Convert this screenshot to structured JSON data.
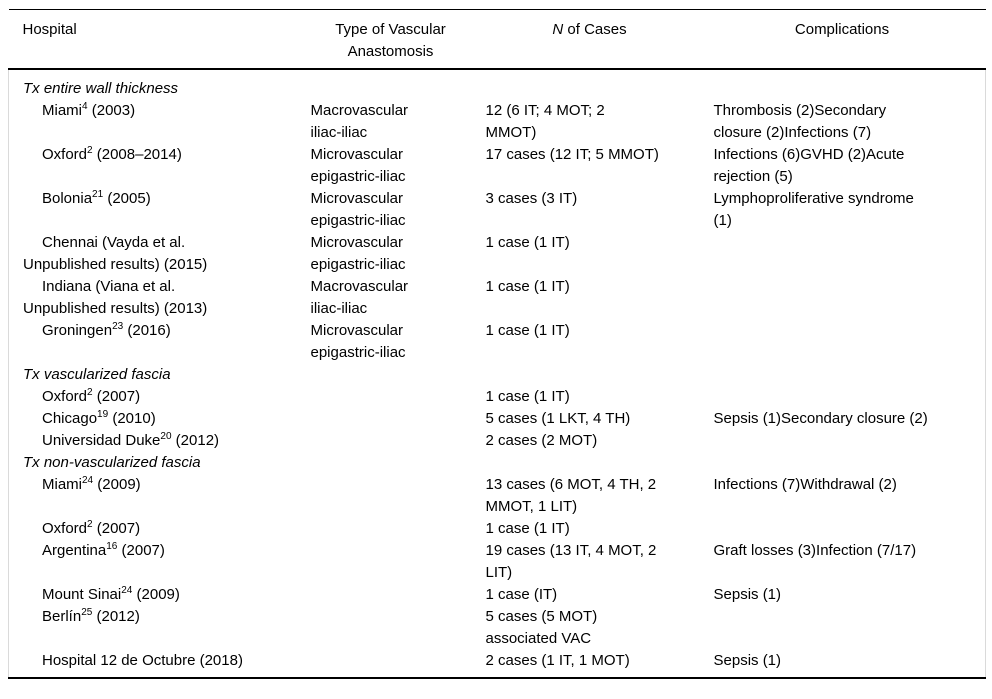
{
  "colors": {
    "text": "#000000",
    "rule_black": "#000000",
    "rule_gray": "#dadada",
    "background": "#ffffff"
  },
  "table": {
    "columns": [
      {
        "label": "Hospital",
        "align": "left"
      },
      {
        "label": "Type of Vascular\nAnastomosis",
        "align": "center"
      },
      {
        "label_italic": "N",
        "label_rest": " of Cases",
        "align": "center"
      },
      {
        "label": "Complications",
        "align": "center"
      }
    ],
    "rows": [
      {
        "kind": "section",
        "label": "Tx entire wall thickness"
      },
      {
        "kind": "entry",
        "name": "Miami",
        "sup": "4",
        "rest": " (2003)",
        "anastomosis": "Macrovascular\niliac-iliac",
        "cases": "12 (6 IT; 4 MOT; 2\nMMOT)",
        "complications": "Thrombosis (2)Secondary\nclosure (2)Infections (7)"
      },
      {
        "kind": "entry",
        "name": "Oxford",
        "sup": "2",
        "rest": " (2008–2014)",
        "anastomosis": "Microvascular\nepigastric-iliac",
        "cases": "17 cases (12 IT; 5 MMOT)",
        "complications": "Infections (6)GVHD (2)Acute\nrejection (5)"
      },
      {
        "kind": "entry",
        "name": "Bolonia",
        "sup": "21",
        "rest": " (2005)",
        "anastomosis": "Microvascular\nepigastric-iliac",
        "cases": "3 cases (3 IT)",
        "complications": "Lymphoproliferative syndrome\n(1)"
      },
      {
        "kind": "entry",
        "name": "Chennai (Vayda et al.\nUnpublished results) (2015)",
        "sup": "",
        "rest": "",
        "anastomosis": "Microvascular\nepigastric-iliac",
        "cases": "1 case (1 IT)",
        "complications": ""
      },
      {
        "kind": "entry",
        "name": "Indiana (Viana et al.\nUnpublished results) (2013)",
        "sup": "",
        "rest": "",
        "anastomosis": "Macrovascular\niliac-iliac",
        "cases": "1 case (1 IT)",
        "complications": ""
      },
      {
        "kind": "entry",
        "name": "Groningen",
        "sup": "23",
        "rest": " (2016)",
        "anastomosis": "Microvascular\nepigastric-iliac",
        "cases": "1 case (1 IT)",
        "complications": ""
      },
      {
        "kind": "section",
        "label": "Tx vascularized fascia"
      },
      {
        "kind": "entry",
        "name": "Oxford",
        "sup": "2",
        "rest": " (2007)",
        "anastomosis": "",
        "cases": "1 case (1 IT)",
        "complications": ""
      },
      {
        "kind": "entry",
        "name": "Chicago",
        "sup": "19",
        "rest": " (2010)",
        "anastomosis": "",
        "cases": "5 cases (1 LKT, 4 TH)",
        "complications": "Sepsis (1)Secondary closure (2)"
      },
      {
        "kind": "entry",
        "name": "Universidad Duke",
        "sup": "20",
        "rest": " (2012)",
        "anastomosis": "",
        "cases": "2 cases (2 MOT)",
        "complications": ""
      },
      {
        "kind": "section",
        "label": "Tx non-vascularized fascia"
      },
      {
        "kind": "entry",
        "name": "Miami",
        "sup": "24",
        "rest": " (2009)",
        "anastomosis": "",
        "cases": "13 cases (6 MOT, 4 TH, 2\nMMOT, 1 LIT)",
        "complications": "Infections (7)Withdrawal (2)"
      },
      {
        "kind": "entry",
        "name": "Oxford",
        "sup": "2",
        "rest": " (2007)",
        "anastomosis": "",
        "cases": "1 case (1 IT)",
        "complications": ""
      },
      {
        "kind": "entry",
        "name": "Argentina",
        "sup": "16",
        "rest": " (2007)",
        "anastomosis": "",
        "cases": "19 cases (13 IT, 4 MOT, 2\nLIT)",
        "complications": "Graft losses (3)Infection (7/17)"
      },
      {
        "kind": "entry",
        "name": "Mount Sinai",
        "sup": "24",
        "rest": " (2009)",
        "anastomosis": "",
        "cases": "1 case (IT)",
        "complications": "Sepsis (1)"
      },
      {
        "kind": "entry",
        "name": "Berlín",
        "sup": "25",
        "rest": " (2012)",
        "anastomosis": "",
        "cases": "5 cases (5 MOT)\nassociated VAC",
        "complications": ""
      },
      {
        "kind": "entry",
        "name": "Hospital 12 de Octubre (2018)",
        "sup": "",
        "rest": "",
        "anastomosis": "",
        "cases": "2 cases (1 IT, 1 MOT)",
        "complications": "Sepsis (1)"
      }
    ]
  }
}
